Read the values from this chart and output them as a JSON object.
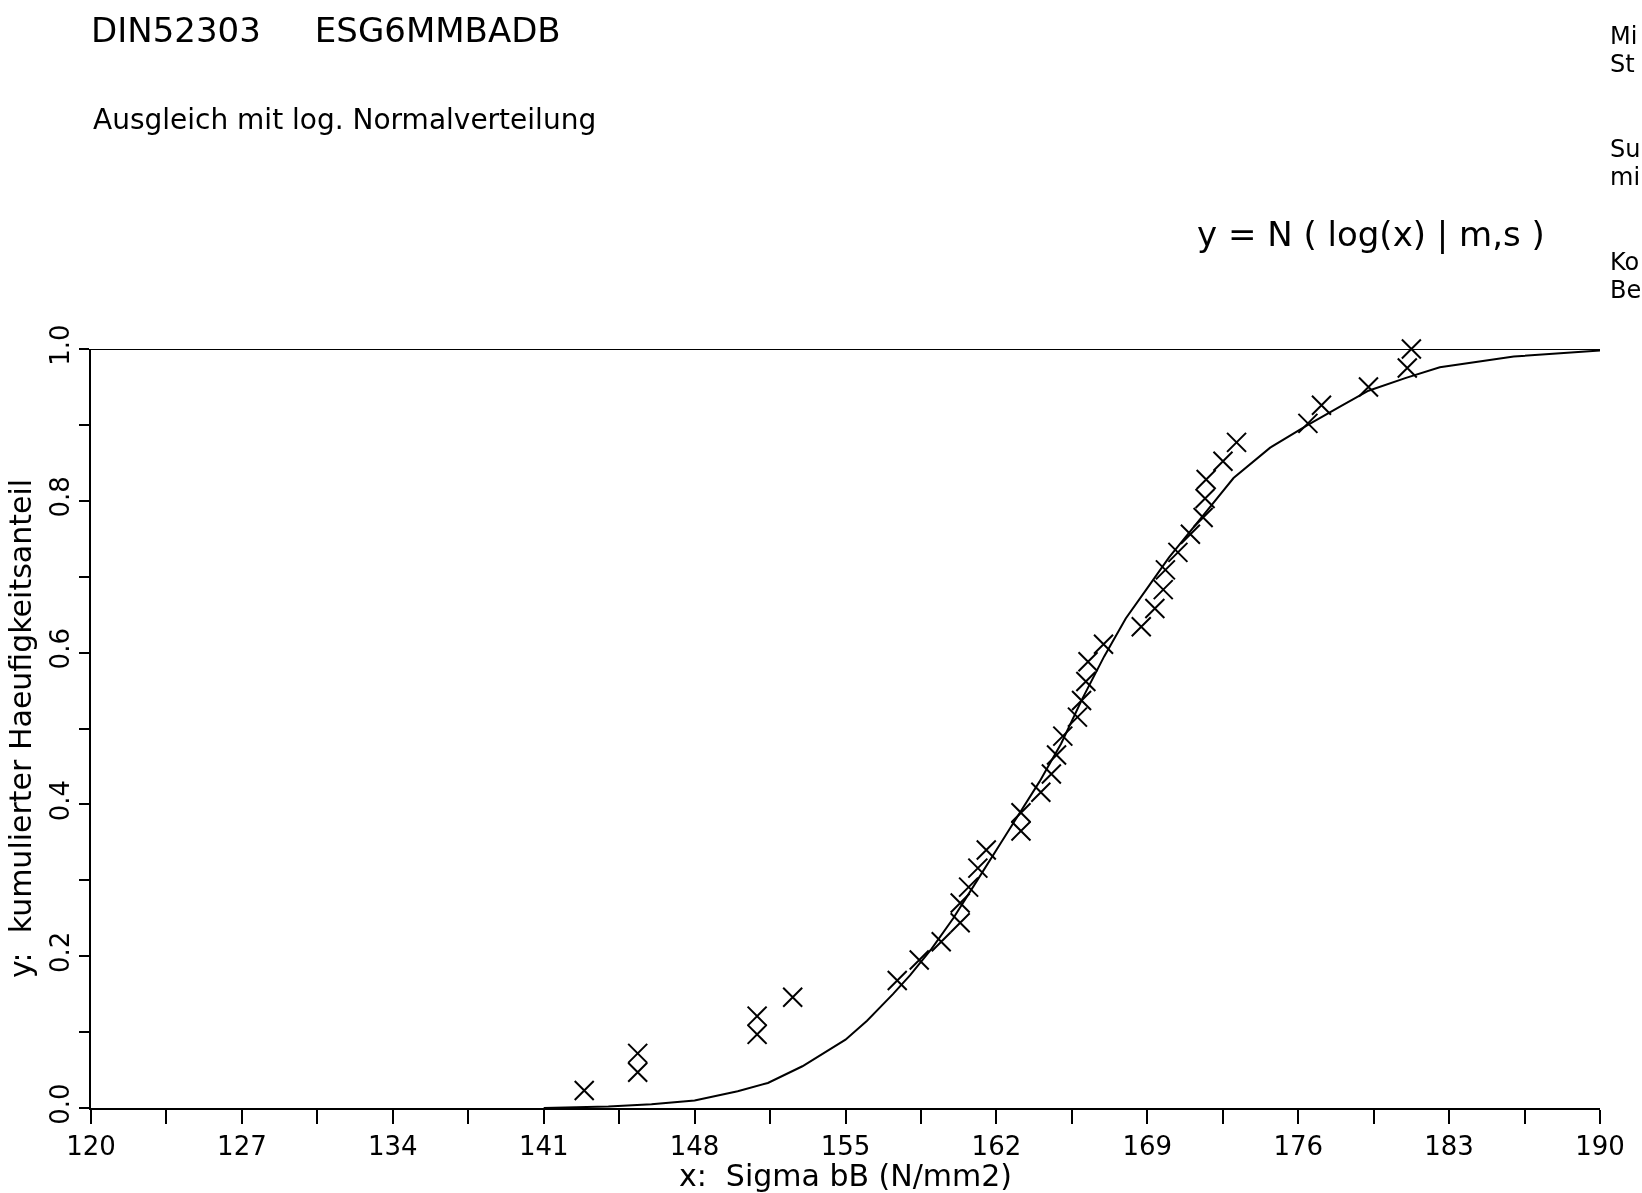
{
  "chart_data": {
    "type": "scatter",
    "title": "DIN52303     ESG6MMBADB",
    "subtitle": "Ausgleich mit log. Normalverteilung",
    "xlabel": "x:  Sigma bB (N/mm2)",
    "ylabel": "y:  kumulierter Haeufigkeitsanteil",
    "annotations": [
      "y = N ( log(x) | m,s )",
      "Mi",
      "St",
      "Su",
      "mi",
      "Ko",
      "Be"
    ],
    "marker": "cross",
    "grid": false,
    "xlim": [
      120,
      190
    ],
    "ylim": [
      0,
      1
    ],
    "xticks": [
      120,
      {
        "value": 123.5,
        "label": null
      },
      127,
      {
        "value": 130.5,
        "label": null
      },
      134,
      {
        "value": 137.5,
        "label": null
      },
      141,
      {
        "value": 144.5,
        "label": null
      },
      148,
      {
        "value": 151.5,
        "label": null
      },
      155,
      {
        "value": 158.5,
        "label": null
      },
      162,
      {
        "value": 165.5,
        "label": null
      },
      169,
      {
        "value": 172.5,
        "label": null
      },
      176,
      {
        "value": 179.5,
        "label": null
      },
      183,
      {
        "value": 186.5,
        "label": null
      },
      190
    ],
    "yticks": [
      {
        "value": 0,
        "label": "0.0"
      },
      {
        "value": 0.1,
        "label": null
      },
      {
        "value": 0.2,
        "label": "0.2"
      },
      {
        "value": 0.3,
        "label": null
      },
      {
        "value": 0.4,
        "label": "0.4"
      },
      {
        "value": 0.5,
        "label": null
      },
      {
        "value": 0.6,
        "label": "0.6"
      },
      {
        "value": 0.7,
        "label": null
      },
      {
        "value": 0.8,
        "label": "0.8"
      },
      {
        "value": 0.9,
        "label": null
      },
      {
        "value": 1,
        "label": "1.0"
      }
    ],
    "series": [
      {
        "color": "#000000",
        "x": [
          142.88,
          145.36,
          145.36,
          150.9,
          150.9,
          152.55,
          157.4,
          158.42,
          159.44,
          160.32,
          160.32,
          160.71,
          161.14,
          161.53,
          163.14,
          163.14,
          164.06,
          164.55,
          164.79,
          165.08,
          165.76,
          165.95,
          166.15,
          166.25,
          166.97,
          168.72,
          169.35,
          169.74,
          169.84,
          170.42,
          171.0,
          171.59,
          171.68,
          171.73,
          172.51,
          173.14,
          176.45,
          177.08,
          179.26,
          181.06,
          181.25
        ],
        "values": [
          0.023,
          0.047,
          0.072,
          0.097,
          0.121,
          0.146,
          0.168,
          0.195,
          0.219,
          0.244,
          0.27,
          0.291,
          0.316,
          0.34,
          0.365,
          0.389,
          0.416,
          0.44,
          0.465,
          0.49,
          0.515,
          0.537,
          0.562,
          0.588,
          0.611,
          0.634,
          0.658,
          0.683,
          0.709,
          0.732,
          0.756,
          0.778,
          0.803,
          0.828,
          0.852,
          0.877,
          0.902,
          0.926,
          0.95,
          0.975,
          1.0
        ]
      },
      {
        "type": "line",
        "color": "#000000",
        "marker": "none",
        "line_style": "solid",
        "x": [
          141,
          144,
          146,
          148,
          150,
          151.4,
          153,
          155,
          156,
          157.2,
          158,
          159,
          160,
          161,
          162,
          163,
          164,
          165,
          166,
          167,
          168,
          169,
          170,
          171,
          172,
          173,
          174.7,
          176.45,
          178,
          179.26,
          181,
          182.57,
          186,
          190
        ],
        "values": [
          0,
          0.002,
          0.005,
          0.01,
          0.022,
          0.033,
          0.055,
          0.09,
          0.115,
          0.15,
          0.175,
          0.21,
          0.25,
          0.295,
          0.34,
          0.385,
          0.43,
          0.48,
          0.54,
          0.595,
          0.645,
          0.685,
          0.725,
          0.76,
          0.795,
          0.83,
          0.87,
          0.9,
          0.925,
          0.945,
          0.962,
          0.976,
          0.99,
          0.998
        ]
      }
    ]
  }
}
